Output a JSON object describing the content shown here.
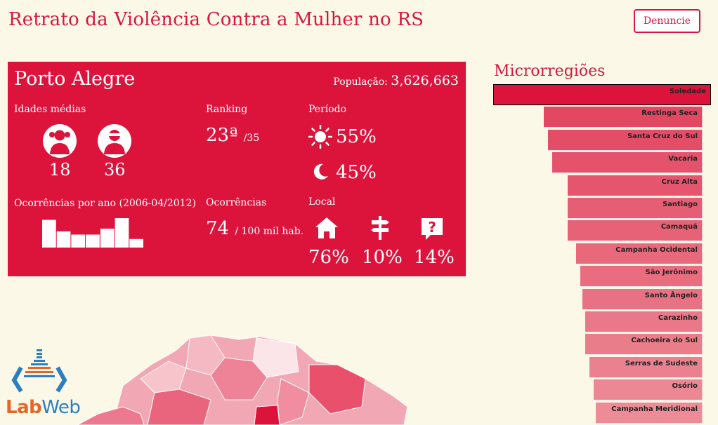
{
  "header": {
    "title": "Retrato da Violência Contra a Mulher no RS",
    "denuncie_label": "Denuncie"
  },
  "panel": {
    "city": "Porto Alegre",
    "population_label": "População:",
    "population_value": "3,626,663",
    "idades_label": "Idades médias",
    "victim_age": "18",
    "aggressor_age": "36",
    "ranking_label": "Ranking",
    "ranking_value": "23ª",
    "ranking_total": "/35",
    "periodo_label": "Período",
    "day_percent": "55%",
    "night_percent": "45%",
    "ocorrencias_ano_label": "Ocorrências por ano (2006-04/2012)",
    "ocorrencias_by_year": [
      0.94,
      0.55,
      0.44,
      0.44,
      0.64,
      1.0,
      0.29
    ],
    "ocorrencias_label": "Ocorrências",
    "ocorrencias_value": "74",
    "ocorrencias_unit": "/ 100 mil hab.",
    "local_label": "Local",
    "local_home": "76%",
    "local_street": "10%",
    "local_unknown": "14%",
    "icons": [
      "victim-icon",
      "aggressor-icon",
      "sun-icon",
      "moon-icon",
      "house-icon",
      "signpost-icon",
      "question-icon"
    ]
  },
  "microrregioes": {
    "title": "Microrregiões",
    "items": [
      {
        "name": "Soledade",
        "value": 1.0
      },
      {
        "name": "Restinga Seca",
        "value": 0.73
      },
      {
        "name": "Santa Cruz do Sul",
        "value": 0.71
      },
      {
        "name": "Vacaria",
        "value": 0.69
      },
      {
        "name": "Cruz Alta",
        "value": 0.62
      },
      {
        "name": "Santiago",
        "value": 0.62
      },
      {
        "name": "Camaquã",
        "value": 0.62
      },
      {
        "name": "Campanha Ocidental",
        "value": 0.58
      },
      {
        "name": "São Jerônimo",
        "value": 0.56
      },
      {
        "name": "Santo Ângelo",
        "value": 0.55
      },
      {
        "name": "Carazinho",
        "value": 0.54
      },
      {
        "name": "Cachoeira do Sul",
        "value": 0.54
      },
      {
        "name": "Serras de Sudeste",
        "value": 0.52
      },
      {
        "name": "Osório",
        "value": 0.5
      },
      {
        "name": "Campanha Meridional",
        "value": 0.49
      }
    ]
  },
  "logo": {
    "part1": "Lab",
    "part2": "Web"
  },
  "colors": {
    "accent": "#dc143c",
    "background": "#fbf8e8"
  }
}
